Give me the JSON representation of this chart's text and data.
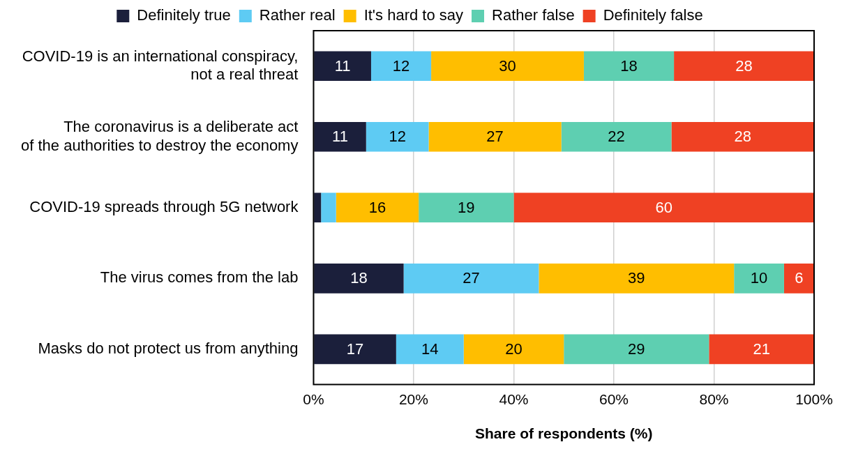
{
  "chart_data": {
    "type": "bar",
    "orientation": "horizontal",
    "stacked": true,
    "categories": [
      "COVID-19 is an international conspiracy,\nnot a real threat",
      "The coronavirus is a deliberate act\nof the authorities to destroy the economy",
      "COVID-19 spreads through 5G network",
      "The virus comes from the lab",
      "Masks do not protect us from anything"
    ],
    "series": [
      {
        "name": "Definitely true",
        "color": "#1b1f3b",
        "values": [
          11.5,
          10.5,
          1.5,
          18,
          16.5
        ],
        "value_labels": [
          "11",
          "11",
          null,
          "18",
          "17"
        ]
      },
      {
        "name": "Rather real",
        "color": "#5ecbf3",
        "values": [
          12,
          12.5,
          3,
          27,
          13.5
        ],
        "value_labels": [
          "12",
          "12",
          null,
          "27",
          "14"
        ]
      },
      {
        "name": "It's hard to say",
        "color": "#ffbe00",
        "values": [
          30.5,
          26.5,
          16.5,
          39,
          20
        ],
        "value_labels": [
          "30",
          "27",
          "16",
          "39",
          "20"
        ]
      },
      {
        "name": "Rather false",
        "color": "#5ecfb1",
        "values": [
          18,
          22,
          19,
          10,
          29
        ],
        "value_labels": [
          "18",
          "22",
          "19",
          "10",
          "29"
        ]
      },
      {
        "name": "Definitely false",
        "color": "#ef4123",
        "values": [
          28,
          28.5,
          60,
          6,
          21
        ],
        "value_labels": [
          "28",
          "28",
          "60",
          "6",
          "21"
        ]
      }
    ],
    "xlim": [
      0,
      100
    ],
    "xticks": [
      {
        "value": 0,
        "label": "0%"
      },
      {
        "value": 20,
        "label": "20%"
      },
      {
        "value": 40,
        "label": "40%"
      },
      {
        "value": 60,
        "label": "60%"
      },
      {
        "value": 80,
        "label": "80%"
      },
      {
        "value": 100,
        "label": "100%"
      }
    ],
    "xlabel": "Share of respondents (%)",
    "grid": "x",
    "legend": "top"
  }
}
